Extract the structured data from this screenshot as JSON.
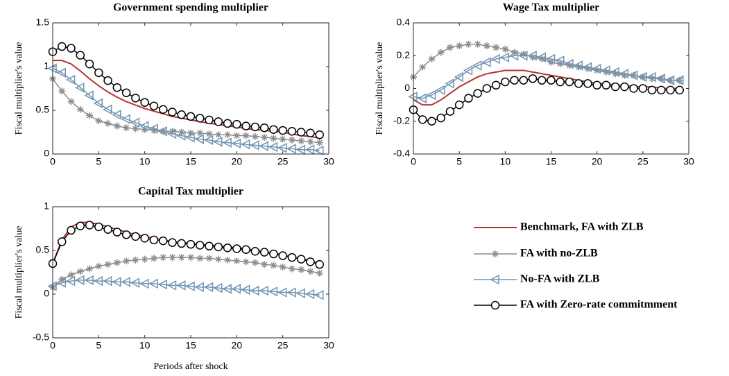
{
  "chart_data": [
    {
      "type": "line",
      "title": "Government spending multiplier",
      "ylabel": "Fiscal multiplier's value",
      "x": [
        0,
        1,
        2,
        3,
        4,
        5,
        6,
        7,
        8,
        9,
        10,
        11,
        12,
        13,
        14,
        15,
        16,
        17,
        18,
        19,
        20,
        21,
        22,
        23,
        24,
        25,
        26,
        27,
        28,
        29
      ],
      "xlim": [
        0,
        30
      ],
      "xticks": [
        0,
        5,
        10,
        15,
        20,
        25,
        30
      ],
      "ylim": [
        0,
        1.5
      ],
      "yticks": [
        0,
        0.5,
        1,
        1.5
      ],
      "series": [
        {
          "name": "Benchmark, FA with ZLB",
          "color": "#b83232",
          "values": [
            1.07,
            1.07,
            1.03,
            0.95,
            0.86,
            0.78,
            0.71,
            0.65,
            0.6,
            0.56,
            0.52,
            0.49,
            0.46,
            0.43,
            0.41,
            0.39,
            0.37,
            0.35,
            0.34,
            0.32,
            0.31,
            0.29,
            0.28,
            0.27,
            0.26,
            0.25,
            0.23,
            0.21,
            0.2,
            0.18
          ]
        },
        {
          "name": "FA with no-ZLB",
          "color": "#8c8c8c",
          "marker": "asterisk",
          "values": [
            0.86,
            0.72,
            0.6,
            0.51,
            0.44,
            0.38,
            0.35,
            0.32,
            0.3,
            0.29,
            0.28,
            0.27,
            0.26,
            0.26,
            0.25,
            0.24,
            0.24,
            0.23,
            0.22,
            0.22,
            0.21,
            0.21,
            0.2,
            0.19,
            0.18,
            0.17,
            0.16,
            0.15,
            0.14,
            0.13
          ]
        },
        {
          "name": "No-FA with ZLB",
          "color": "#7193b3",
          "marker": "triangle-left",
          "values": [
            0.98,
            0.93,
            0.85,
            0.76,
            0.67,
            0.58,
            0.51,
            0.45,
            0.4,
            0.36,
            0.32,
            0.29,
            0.26,
            0.23,
            0.21,
            0.19,
            0.17,
            0.16,
            0.14,
            0.13,
            0.12,
            0.11,
            0.1,
            0.09,
            0.08,
            0.07,
            0.06,
            0.05,
            0.05,
            0.04
          ]
        },
        {
          "name": "FA with Zero-rate commitmment",
          "color": "#000000",
          "marker": "circle",
          "values": [
            1.17,
            1.23,
            1.21,
            1.13,
            1.03,
            0.93,
            0.84,
            0.76,
            0.7,
            0.64,
            0.59,
            0.55,
            0.51,
            0.48,
            0.45,
            0.43,
            0.41,
            0.39,
            0.37,
            0.35,
            0.34,
            0.32,
            0.31,
            0.3,
            0.28,
            0.27,
            0.26,
            0.25,
            0.24,
            0.22
          ]
        }
      ]
    },
    {
      "type": "line",
      "title": "Wage Tax multiplier",
      "ylabel": "Fiscal multiplier's value",
      "x": [
        0,
        1,
        2,
        3,
        4,
        5,
        6,
        7,
        8,
        9,
        10,
        11,
        12,
        13,
        14,
        15,
        16,
        17,
        18,
        19,
        20,
        21,
        22,
        23,
        24,
        25,
        26,
        27,
        28,
        29
      ],
      "xlim": [
        0,
        30
      ],
      "xticks": [
        0,
        5,
        10,
        15,
        20,
        25,
        30
      ],
      "ylim": [
        -0.4,
        0.4
      ],
      "yticks": [
        -0.4,
        -0.2,
        0,
        0.2,
        0.4
      ],
      "series": [
        {
          "name": "Benchmark, FA with ZLB",
          "color": "#b83232",
          "values": [
            -0.07,
            -0.1,
            -0.1,
            -0.07,
            -0.03,
            0.01,
            0.04,
            0.07,
            0.09,
            0.1,
            0.11,
            0.11,
            0.11,
            0.1,
            0.09,
            0.08,
            0.07,
            0.06,
            0.05,
            0.04,
            0.03,
            0.03,
            0.02,
            0.02,
            0.01,
            0.01,
            0.01,
            0,
            0,
            0
          ]
        },
        {
          "name": "FA with no-ZLB",
          "color": "#8c8c8c",
          "marker": "asterisk",
          "values": [
            0.07,
            0.13,
            0.18,
            0.22,
            0.25,
            0.26,
            0.27,
            0.27,
            0.26,
            0.25,
            0.24,
            0.22,
            0.21,
            0.19,
            0.18,
            0.16,
            0.15,
            0.14,
            0.13,
            0.12,
            0.11,
            0.1,
            0.09,
            0.08,
            0.08,
            0.07,
            0.06,
            0.06,
            0.05,
            0.05
          ]
        },
        {
          "name": "No-FA with ZLB",
          "color": "#7193b3",
          "marker": "triangle-left",
          "values": [
            -0.05,
            -0.06,
            -0.04,
            -0.01,
            0.03,
            0.07,
            0.11,
            0.14,
            0.16,
            0.18,
            0.19,
            0.2,
            0.2,
            0.2,
            0.19,
            0.18,
            0.17,
            0.15,
            0.14,
            0.13,
            0.12,
            0.11,
            0.1,
            0.09,
            0.08,
            0.07,
            0.07,
            0.06,
            0.05,
            0.05
          ]
        },
        {
          "name": "FA with Zero-rate commitmment",
          "color": "#000000",
          "marker": "circle",
          "values": [
            -0.13,
            -0.19,
            -0.2,
            -0.18,
            -0.14,
            -0.1,
            -0.06,
            -0.03,
            0,
            0.02,
            0.04,
            0.05,
            0.05,
            0.06,
            0.05,
            0.05,
            0.04,
            0.04,
            0.03,
            0.03,
            0.02,
            0.02,
            0.01,
            0.01,
            0,
            0,
            -0.01,
            -0.01,
            -0.01,
            -0.01
          ]
        }
      ]
    },
    {
      "type": "line",
      "title": "Capital Tax multiplier",
      "ylabel": "Fiscal multiplier's value",
      "xlabel": "Periods after shock",
      "legend": "right",
      "x": [
        0,
        1,
        2,
        3,
        4,
        5,
        6,
        7,
        8,
        9,
        10,
        11,
        12,
        13,
        14,
        15,
        16,
        17,
        18,
        19,
        20,
        21,
        22,
        23,
        24,
        25,
        26,
        27,
        28,
        29
      ],
      "xlim": [
        0,
        30
      ],
      "xticks": [
        0,
        5,
        10,
        15,
        20,
        25,
        30
      ],
      "ylim": [
        -0.5,
        1
      ],
      "yticks": [
        -0.5,
        0,
        0.5,
        1
      ],
      "series": [
        {
          "name": "Benchmark, FA with ZLB",
          "color": "#b83232",
          "values": [
            0.35,
            0.62,
            0.77,
            0.82,
            0.82,
            0.8,
            0.77,
            0.74,
            0.71,
            0.68,
            0.66,
            0.64,
            0.62,
            0.6,
            0.59,
            0.58,
            0.57,
            0.56,
            0.55,
            0.54,
            0.53,
            0.52,
            0.5,
            0.49,
            0.47,
            0.45,
            0.43,
            0.41,
            0.38,
            0.35
          ]
        },
        {
          "name": "FA with no-ZLB",
          "color": "#8c8c8c",
          "marker": "asterisk",
          "values": [
            0.08,
            0.17,
            0.22,
            0.26,
            0.29,
            0.32,
            0.34,
            0.36,
            0.38,
            0.39,
            0.4,
            0.41,
            0.42,
            0.42,
            0.42,
            0.42,
            0.41,
            0.41,
            0.4,
            0.39,
            0.38,
            0.37,
            0.36,
            0.34,
            0.33,
            0.31,
            0.29,
            0.28,
            0.26,
            0.24
          ]
        },
        {
          "name": "No-FA with ZLB",
          "color": "#7193b3",
          "marker": "triangle-left",
          "values": [
            0.09,
            0.13,
            0.15,
            0.16,
            0.16,
            0.15,
            0.15,
            0.14,
            0.14,
            0.13,
            0.12,
            0.12,
            0.11,
            0.1,
            0.1,
            0.09,
            0.08,
            0.08,
            0.07,
            0.06,
            0.06,
            0.05,
            0.04,
            0.04,
            0.03,
            0.02,
            0.02,
            0.01,
            0,
            -0.01
          ]
        },
        {
          "name": "FA with Zero-rate commitmment",
          "color": "#000000",
          "marker": "circle",
          "values": [
            0.35,
            0.6,
            0.73,
            0.78,
            0.79,
            0.77,
            0.74,
            0.71,
            0.68,
            0.66,
            0.64,
            0.62,
            0.61,
            0.59,
            0.58,
            0.57,
            0.56,
            0.55,
            0.54,
            0.53,
            0.52,
            0.51,
            0.49,
            0.48,
            0.46,
            0.44,
            0.42,
            0.4,
            0.37,
            0.34
          ]
        }
      ]
    }
  ]
}
